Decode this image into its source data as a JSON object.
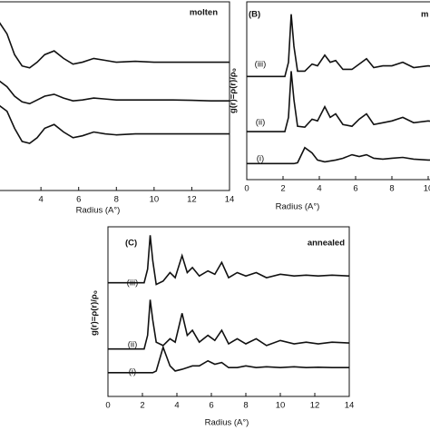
{
  "chart_data": [
    {
      "type": "line",
      "title": "molten",
      "xlabel": "Radius (A°)",
      "x": [
        1.8,
        2.2,
        2.6,
        3.0,
        3.4,
        3.8,
        4.2,
        4.7,
        5.2,
        5.7,
        6.2,
        6.8,
        7.4,
        8,
        9,
        10,
        11,
        12,
        13,
        14
      ],
      "series": [
        {
          "color": "#111111",
          "values": [
            8.9,
            8.3,
            7.2,
            6.6,
            6.5,
            6.8,
            7.2,
            7.4,
            7.0,
            6.7,
            6.8,
            7.0,
            6.9,
            6.8,
            6.85,
            6.8,
            6.8,
            6.8,
            6.8,
            6.8
          ]
        },
        {
          "color": "#111111",
          "values": [
            5.8,
            5.5,
            5.0,
            4.7,
            4.6,
            4.8,
            5.0,
            5.1,
            4.9,
            4.75,
            4.8,
            4.9,
            4.85,
            4.8,
            4.8,
            4.8,
            4.8,
            4.78,
            4.75,
            4.75
          ]
        },
        {
          "color": "#111111",
          "values": [
            4.5,
            4.2,
            3.3,
            2.6,
            2.5,
            2.8,
            3.3,
            3.5,
            3.1,
            2.8,
            2.9,
            3.1,
            3.0,
            2.95,
            3.0,
            3.0,
            3.0,
            3.0,
            3.0,
            3.0
          ]
        }
      ],
      "xlim": [
        0,
        14
      ],
      "ylim": [
        0,
        10
      ],
      "xticks": [
        4,
        6,
        8,
        10,
        12,
        14
      ]
    },
    {
      "type": "line",
      "panel_label": "(B)",
      "title": "m",
      "xlabel": "Radius (A°)",
      "ylabel": "g(r)=ρ(r)/ρ₀",
      "x": [
        0,
        2.1,
        2.3,
        2.45,
        2.6,
        2.8,
        3.2,
        3.6,
        3.9,
        4.3,
        4.6,
        4.9,
        5.3,
        5.8,
        6.2,
        6.6,
        7,
        7.5,
        8,
        8.6,
        9.2,
        10,
        10.8,
        11.5,
        12.2,
        13,
        14
      ],
      "series": [
        {
          "name": "(iii)",
          "color": "#111111",
          "values": [
            5.8,
            5.8,
            6.6,
            9.3,
            7.5,
            6.1,
            6.1,
            6.5,
            6.4,
            7.0,
            6.6,
            6.7,
            6.2,
            6.2,
            6.5,
            6.8,
            6.3,
            6.4,
            6.4,
            6.6,
            6.3,
            6.4,
            6.3,
            6.35,
            6.3,
            6.3,
            6.3
          ]
        },
        {
          "name": "(ii)",
          "color": "#111111",
          "values": [
            2.7,
            2.7,
            3.5,
            6.1,
            4.5,
            3.0,
            2.95,
            3.4,
            3.3,
            4.1,
            3.5,
            3.7,
            3.1,
            3.0,
            3.4,
            3.7,
            3.1,
            3.2,
            3.3,
            3.5,
            3.2,
            3.3,
            3.2,
            3.25,
            3.2,
            3.2,
            3.2
          ]
        },
        {
          "name": "(i)",
          "color": "#111111",
          "values": [
            0.9,
            0.9,
            0.9,
            0.9,
            0.9,
            0.95,
            1.8,
            1.5,
            1.1,
            1.0,
            1.05,
            1.1,
            1.2,
            1.4,
            1.3,
            1.4,
            1.2,
            1.15,
            1.2,
            1.25,
            1.15,
            1.1,
            1.1,
            1.05,
            1.05,
            1.0,
            1.0
          ]
        }
      ],
      "xlim": [
        0,
        14
      ],
      "ylim": [
        0,
        10
      ],
      "xticks": [
        0,
        2,
        4,
        6,
        8,
        10
      ]
    },
    {
      "type": "line",
      "panel_label": "(C)",
      "title": "annealed",
      "xlabel": "Radius (A°)",
      "ylabel": "g(r)=ρ(r)/ρ₀",
      "x": [
        0,
        2.1,
        2.3,
        2.45,
        2.6,
        2.8,
        3.2,
        3.6,
        3.9,
        4.3,
        4.6,
        4.9,
        5.3,
        5.8,
        6.2,
        6.6,
        7,
        7.5,
        8,
        8.6,
        9.2,
        10,
        10.8,
        11.5,
        12.2,
        13,
        14
      ],
      "series": [
        {
          "name": "(iii)",
          "color": "#111111",
          "values": [
            6.7,
            6.7,
            7.5,
            9.5,
            8.0,
            6.6,
            6.8,
            7.3,
            7.0,
            8.3,
            7.3,
            7.6,
            7.1,
            7.4,
            7.2,
            7.9,
            7.0,
            7.3,
            7.1,
            7.3,
            7.0,
            7.2,
            7.1,
            7.15,
            7.1,
            7.15,
            7.1
          ]
        },
        {
          "name": "(ii)",
          "color": "#111111",
          "values": [
            2.8,
            2.8,
            3.6,
            5.7,
            4.5,
            3.2,
            3.0,
            3.4,
            3.2,
            4.9,
            3.6,
            3.9,
            3.2,
            3.6,
            3.3,
            3.9,
            3.1,
            3.4,
            3.1,
            3.4,
            3.0,
            3.3,
            3.1,
            3.2,
            3.1,
            3.2,
            3.15
          ]
        },
        {
          "name": "(i)",
          "color": "#111111",
          "values": [
            1.4,
            1.4,
            1.4,
            1.4,
            1.4,
            1.5,
            2.9,
            1.8,
            1.5,
            1.6,
            1.7,
            1.8,
            1.8,
            2.1,
            1.9,
            2.0,
            1.7,
            1.7,
            1.8,
            1.7,
            1.75,
            1.7,
            1.75,
            1.7,
            1.72,
            1.7,
            1.7
          ]
        }
      ],
      "xlim": [
        0,
        14
      ],
      "ylim": [
        0,
        10
      ],
      "xticks": [
        0,
        2,
        4,
        6,
        8,
        10,
        12,
        14
      ]
    }
  ]
}
